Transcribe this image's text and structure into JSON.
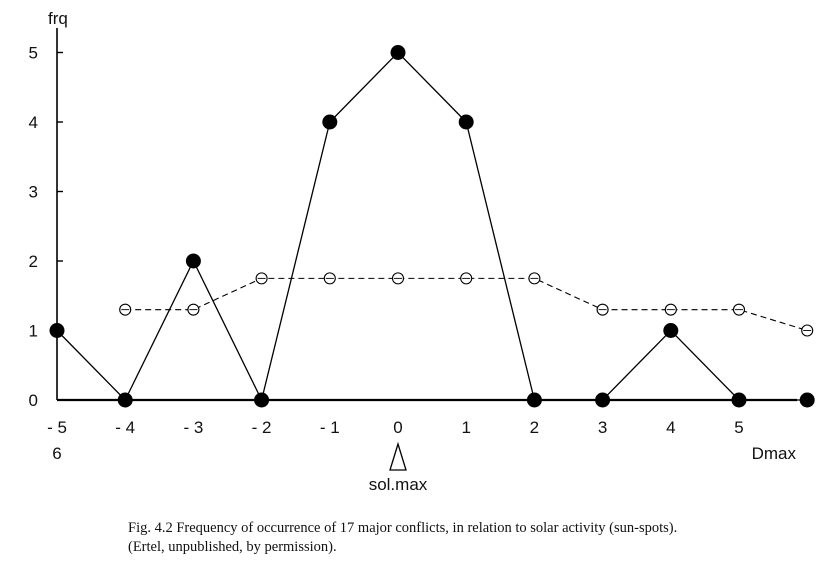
{
  "chart_data": {
    "type": "line",
    "ylabel": "frq",
    "xlabel": "Dmax",
    "x_tick_labels": [
      "- 5",
      "- 4",
      "- 3",
      "- 2",
      "- 1",
      "0",
      "1",
      "2",
      "3",
      "4",
      "5"
    ],
    "extra_tick_label": "6",
    "y_tick_labels": [
      "0",
      "1",
      "2",
      "3",
      "4",
      "5"
    ],
    "ylim": [
      0,
      5
    ],
    "xlim": [
      -5,
      6
    ],
    "grid": false,
    "legend": "none",
    "marker_label": "sol.max",
    "marker_x": 0,
    "series": [
      {
        "style": "solid-filled-dots",
        "color": "#000000",
        "x": [
          -5,
          -4,
          -3,
          -2,
          -1,
          0,
          1,
          2,
          3,
          4,
          5,
          6
        ],
        "values": [
          1,
          0,
          2,
          0,
          4,
          5,
          4,
          0,
          0,
          1,
          0,
          0
        ]
      },
      {
        "style": "dashed-open-circles",
        "color": "#000000",
        "x": [
          -4,
          -3,
          -2,
          -1,
          0,
          1,
          2,
          3,
          4,
          5,
          6
        ],
        "values": [
          1.3,
          1.3,
          1.75,
          1.75,
          1.75,
          1.75,
          1.75,
          1.3,
          1.3,
          1.3,
          1.0
        ]
      }
    ]
  },
  "caption": {
    "line1": "Fig. 4.2 Frequency of occurrence of 17 major conflicts, in relation to solar activity (sun-spots).",
    "line2": "(Ertel, unpublished, by permission)."
  }
}
